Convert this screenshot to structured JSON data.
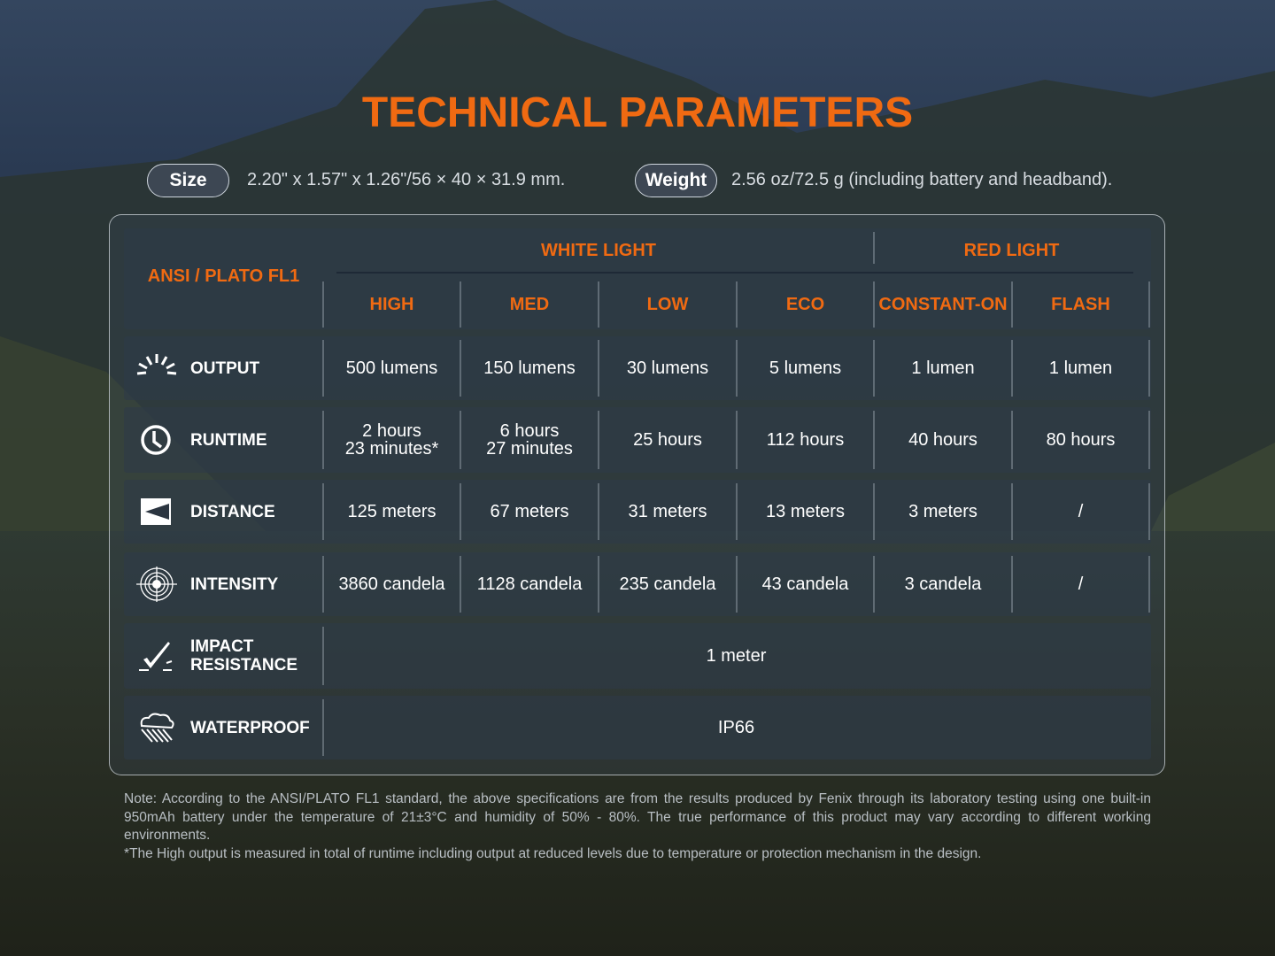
{
  "title": "TECHNICAL PARAMETERS",
  "size": {
    "label": "Size",
    "value": "2.20\" x 1.57\" x 1.26\"/56 × 40 × 31.9 mm."
  },
  "weight": {
    "label": "Weight",
    "value": "2.56 oz/72.5 g (including battery and headband)."
  },
  "table": {
    "corner": "ANSI / PLATO FL1",
    "groups": [
      "WHITE LIGHT",
      "RED LIGHT"
    ],
    "modes": [
      "HIGH",
      "MED",
      "LOW",
      "ECO",
      "CONSTANT-ON",
      "FLASH"
    ],
    "rows": [
      {
        "label": "OUTPUT",
        "icon": "sunburst-icon",
        "values": [
          "500 lumens",
          "150 lumens",
          "30 lumens",
          "5 lumens",
          "1 lumen",
          "1 lumen"
        ]
      },
      {
        "label": "RUNTIME",
        "icon": "clock-icon",
        "values": [
          "2 hours\n23 minutes*",
          "6 hours\n27 minutes",
          "25 hours",
          "112 hours",
          "40 hours",
          "80 hours"
        ]
      },
      {
        "label": "DISTANCE",
        "icon": "beam-distance-icon",
        "values": [
          "125 meters",
          "67 meters",
          "31 meters",
          "13 meters",
          "3 meters",
          "/"
        ]
      },
      {
        "label": "INTENSITY",
        "icon": "target-icon",
        "values": [
          "3860 candela",
          "1128 candela",
          "235 candela",
          "43 candela",
          "3 candela",
          "/"
        ]
      },
      {
        "label": "IMPACT\nRESISTANCE",
        "icon": "impact-icon",
        "span": "1 meter"
      },
      {
        "label": "WATERPROOF",
        "icon": "rain-cloud-icon",
        "span": "IP66"
      }
    ]
  },
  "notes": [
    "Note: According to the ANSI/PLATO FL1 standard, the above specifications are from the results produced by Fenix through its laboratory testing using one built-in 950mAh battery under the temperature of 21±3°C and humidity of 50% - 80%. The true performance of this product may vary according to different working environments.",
    "*The High output is measured in total of runtime including output at reduced levels due to temperature or protection mechanism in the design."
  ],
  "colors": {
    "accent": "#f06a12"
  }
}
